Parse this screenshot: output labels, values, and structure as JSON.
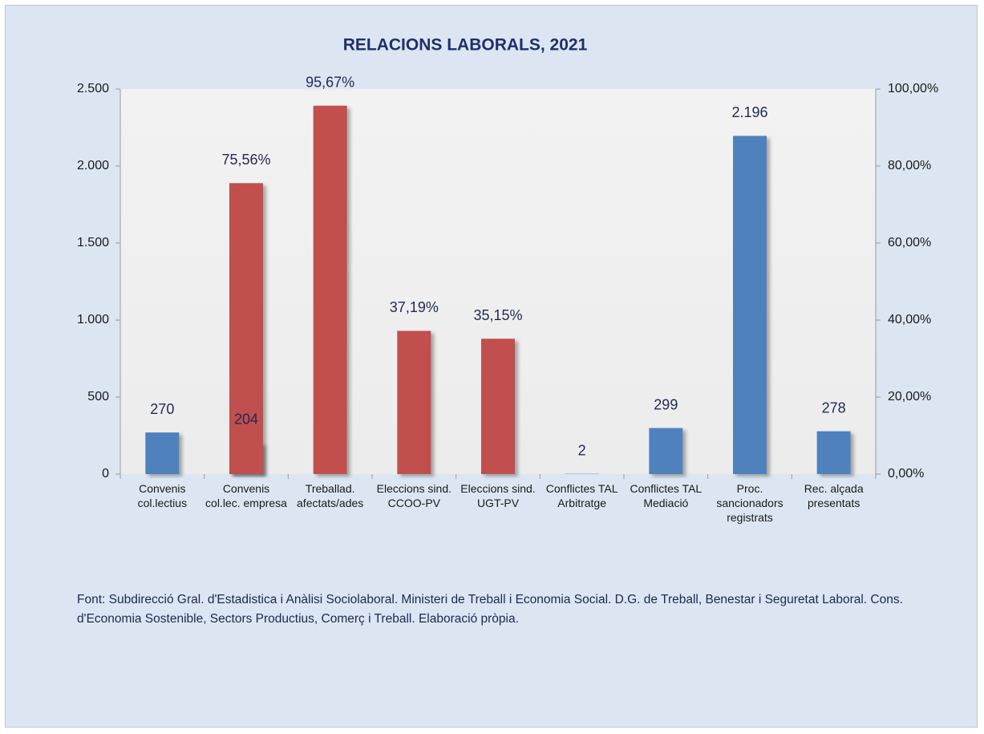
{
  "chart_data": {
    "type": "bar",
    "title": "RELACIONS LABORALS, 2021",
    "categories": [
      "Convenis col.lectius",
      "Convenis col.lec. empresa",
      "Treballad. afectats/ades",
      "Eleccions sind. CCOO-PV",
      "Eleccions sind. UGT-PV",
      "Conflictes TAL Arbitratge",
      "Conflictes TAL Mediació",
      "Proc. sancionadors registrats",
      "Rec. alçada presentats"
    ],
    "series": [
      {
        "color": "#4f81bd",
        "values": [
          270,
          204,
          null,
          null,
          null,
          2,
          299,
          2196,
          278
        ],
        "value_labels": [
          "270",
          "204",
          null,
          null,
          null,
          "2",
          "299",
          "2.196",
          "278"
        ]
      },
      {
        "color": "#c0504d",
        "axis": "y2",
        "values": [
          null,
          75.56,
          95.67,
          37.19,
          35.15,
          null,
          null,
          null,
          null
        ],
        "value_labels": [
          null,
          "75,56%",
          "95,67%",
          "37,19%",
          "35,15%",
          null,
          null,
          null,
          null
        ]
      }
    ],
    "ylim": [
      0,
      2500
    ],
    "yticks": [
      0,
      500,
      {
        "value": 1000,
        "label": "1.000"
      },
      {
        "value": 1500,
        "label": "1.500"
      },
      {
        "value": 2000,
        "label": "2.000"
      },
      {
        "value": 2500,
        "label": "2.500"
      }
    ],
    "y2lim": [
      0,
      100
    ],
    "y2ticks": [
      {
        "value": 0,
        "label": "0,00%"
      },
      {
        "value": 20,
        "label": "20,00%"
      },
      {
        "value": 40,
        "label": "40,00%"
      },
      {
        "value": 60,
        "label": "60,00%"
      },
      {
        "value": 80,
        "label": "80,00%"
      },
      {
        "value": 100,
        "label": "100,00%"
      }
    ],
    "source": "Font: Subdirecció Gral. d'Estadistica i Anàlisi Sociolaboral. Ministeri de Treball i Economia Social. D.G. de Treball, Benestar i Seguretat Laboral. Cons. d'Economia Sostenible, Sectors Productius, Comerç i Treball. Elaboració pròpia."
  }
}
